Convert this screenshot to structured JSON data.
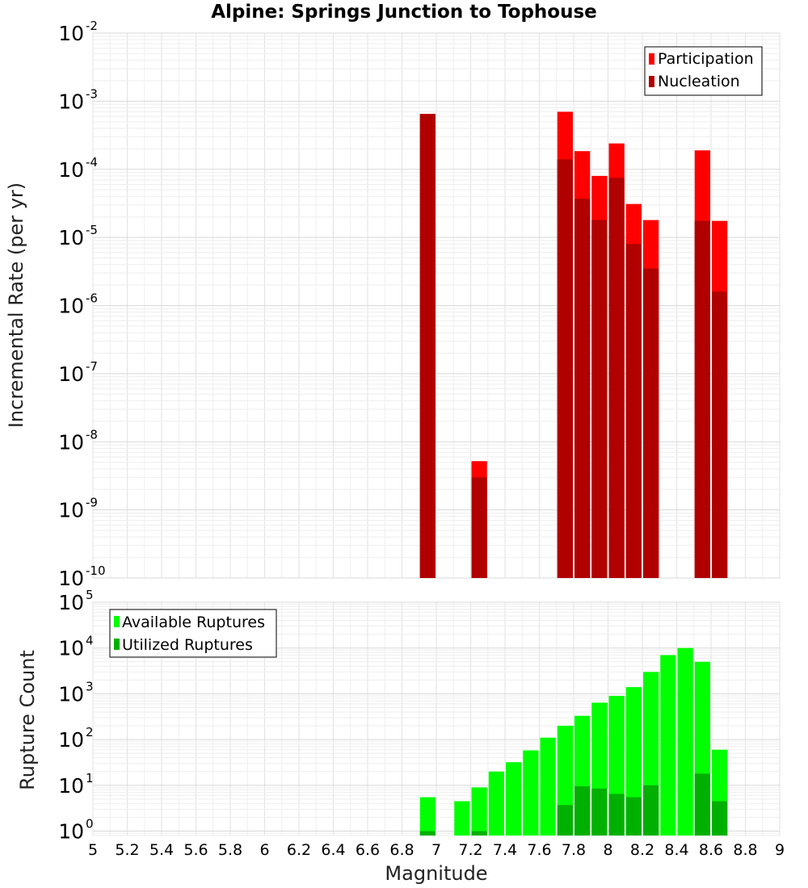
{
  "chart_data": [
    {
      "type": "bar",
      "title": "Alpine: Springs Junction to Tophouse",
      "ylabel": "Incremental Rate (per yr)",
      "xlabel": "",
      "y_scale": "log",
      "ylim": [
        1e-10,
        0.01
      ],
      "xlim": [
        5,
        9
      ],
      "y_tick_exponents": [
        "-10",
        "-9",
        "-8",
        "-7",
        "-6",
        "-5",
        "-4",
        "-3",
        "-2"
      ],
      "grid": true,
      "legend_position": "top-right",
      "colors": {
        "participation": "#ff0000",
        "nucleation": "#b00000"
      },
      "series": [
        {
          "name": "Participation",
          "x": [
            6.95,
            7.25,
            7.75,
            7.85,
            7.95,
            8.05,
            8.15,
            8.25,
            8.55,
            8.65
          ],
          "values": [
            0.00065,
            5.2e-09,
            0.0007,
            0.000185,
            8e-05,
            0.00024,
            3.1e-05,
            1.8e-05,
            0.00019,
            1.75e-05
          ]
        },
        {
          "name": "Nucleation",
          "x": [
            6.95,
            7.25,
            7.75,
            7.85,
            7.95,
            8.05,
            8.15,
            8.25,
            8.55,
            8.65
          ],
          "values": [
            0.00065,
            3e-09,
            0.00014,
            3.7e-05,
            1.8e-05,
            7.5e-05,
            8e-06,
            3.5e-06,
            1.75e-05,
            1.6e-06
          ]
        }
      ]
    },
    {
      "type": "bar",
      "title": "",
      "ylabel": "Rupture Count",
      "xlabel": "Magnitude",
      "y_scale": "log",
      "ylim": [
        0.8,
        100000
      ],
      "xlim": [
        5,
        9
      ],
      "y_tick_exponents": [
        "0",
        "1",
        "2",
        "3",
        "4",
        "5"
      ],
      "x_ticks": [
        "5",
        "5.2",
        "5.4",
        "5.6",
        "5.8",
        "6",
        "6.2",
        "6.4",
        "6.6",
        "6.8",
        "7",
        "7.2",
        "7.4",
        "7.6",
        "7.8",
        "8",
        "8.2",
        "8.4",
        "8.6",
        "8.8",
        "9"
      ],
      "grid": true,
      "legend_position": "top-left",
      "colors": {
        "available": "#00ff00",
        "utilized": "#00b000"
      },
      "series": [
        {
          "name": "Available Ruptures",
          "x": [
            6.95,
            7.15,
            7.25,
            7.35,
            7.45,
            7.55,
            7.65,
            7.75,
            7.85,
            7.95,
            8.05,
            8.15,
            8.25,
            8.35,
            8.45,
            8.55,
            8.65
          ],
          "values": [
            5.5,
            4.5,
            9,
            20,
            32,
            58,
            110,
            200,
            330,
            640,
            900,
            1400,
            3000,
            7000,
            10000,
            5000,
            60
          ]
        },
        {
          "name": "Utilized Ruptures",
          "x": [
            6.95,
            7.25,
            7.75,
            7.85,
            7.95,
            8.05,
            8.15,
            8.25,
            8.55,
            8.65
          ],
          "values": [
            1,
            1,
            3.7,
            9.5,
            8.5,
            6.5,
            5.5,
            10,
            18,
            4.5
          ]
        }
      ]
    }
  ]
}
